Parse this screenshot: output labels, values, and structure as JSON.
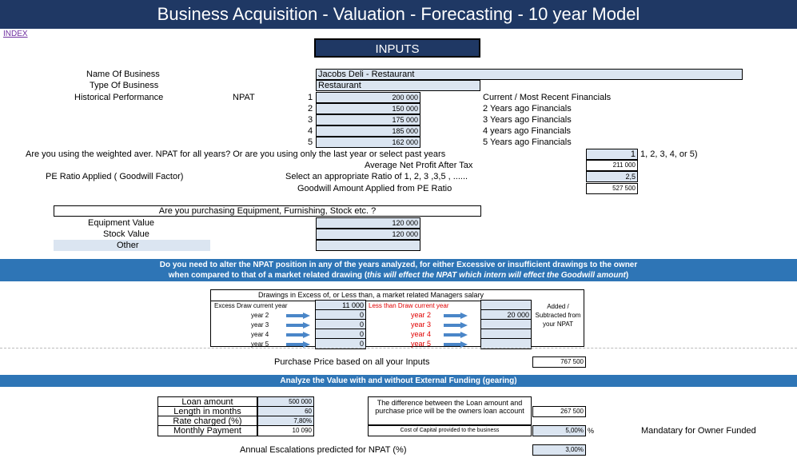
{
  "header": {
    "title": "Business Acquisition - Valuation - Forecasting - 10 year Model",
    "index_link": "INDEX"
  },
  "inputs_title": "INPUTS",
  "business": {
    "name_label": "Name Of Business",
    "name_value": "Jacobs Deli - Restaurant",
    "type_label": "Type Of Business",
    "type_value": "Restaurant",
    "hist_label": "Historical Performance",
    "npat_label": "NPAT"
  },
  "npat_years": [
    {
      "n": "1",
      "value": "200 000",
      "desc": "Current / Most Recent Financials"
    },
    {
      "n": "2",
      "value": "150 000",
      "desc": "2 Years ago Financials"
    },
    {
      "n": "3",
      "value": "175 000",
      "desc": "3 Years ago Financials"
    },
    {
      "n": "4",
      "value": "185 000",
      "desc": "4 years ago Financials"
    },
    {
      "n": "5",
      "value": "162 000",
      "desc": "5 Years ago Financials"
    }
  ],
  "weighted": {
    "question": "Are you using the weighted aver. NPAT for all years? Or are you using only the last year or select past years",
    "value": "1",
    "hint": "1, 2, 3, 4, or 5)"
  },
  "avg_npat": {
    "label": "Average Net Profit After Tax",
    "value": "211 000"
  },
  "pe": {
    "label": "PE Ratio Applied ( Goodwill Factor)",
    "select_label": "Select an appropriate Ratio of 1, 2, 3 ,3,5 , ......",
    "value": "2,5"
  },
  "goodwill": {
    "label": "Goodwill Amount Applied from PE Ratio",
    "value": "527 500"
  },
  "purchase_q": "Are you purchasing Equipment, Furnishing, Stock etc. ?",
  "equipment": {
    "label": "Equipment Value",
    "value": "120 000"
  },
  "stock": {
    "label": "Stock Value",
    "value": "120 000"
  },
  "other": {
    "label": "Other",
    "value": ""
  },
  "banner1": {
    "line1": "Do you need to alter the NPAT position in any of the years analyzed, for either Excessive or insufficient drawings to the owner",
    "line2a": "when compared to that of a market related drawing (",
    "line2b": "this will effect the NPAT which intern will effect the Goodwill amount",
    "line2c": ")"
  },
  "drawings": {
    "title": "Drawings in Excess of, or Less than, a market related Managers salary",
    "excess_label": "Excess Draw current year",
    "excess_value": "11 000",
    "less_label": "Less than Draw current year",
    "added_label": "Added / Subtracted from your NPAT",
    "rows": [
      {
        "year": "year 2",
        "left": "0",
        "right_year": "year 2",
        "right": "20 000"
      },
      {
        "year": "year 3",
        "left": "0",
        "right_year": "year 3",
        "right": ""
      },
      {
        "year": "year 4",
        "left": "0",
        "right_year": "year 4",
        "right": ""
      },
      {
        "year": "year 5",
        "left": "0",
        "right_year": "year 5",
        "right": ""
      }
    ]
  },
  "purchase_price": {
    "label": "Purchase Price based on all your Inputs",
    "value": "767 500"
  },
  "banner2": "Analyze the Value with and without External Funding (gearing)",
  "loan": [
    {
      "label": "Loan amount",
      "value": "500 000"
    },
    {
      "label": "Length in months",
      "value": "60"
    },
    {
      "label": "Rate charged (%)",
      "value": "7,80%"
    },
    {
      "label": "Monthly Payment",
      "value": "10 090"
    }
  ],
  "difference": {
    "label": "The difference between the Loan amount and purchase price will be the owners loan account",
    "value": "267 500"
  },
  "cost_capital": {
    "label": "Cost of Capital provided to the business",
    "value": "5,00%",
    "unit": "%",
    "note": "Mandatary for Owner Funded"
  },
  "escalation": {
    "label": "Annual Escalations predicted for NPAT (%)",
    "value": "3,00%"
  }
}
